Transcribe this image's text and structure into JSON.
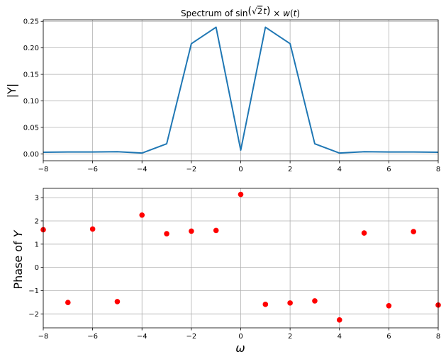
{
  "chart_data": [
    {
      "type": "line",
      "title": "Spectrum of sin(√2 t) × w(t)",
      "title_parts": {
        "pre": "Spectrum of sin",
        "lparen": "(",
        "sqrt": "√",
        "two": "2",
        "t": "t",
        "rparen": ")",
        "times": " × ",
        "w": "w",
        "wparen": "(",
        "wt": "t",
        "wclose": ")"
      },
      "xlabel": "",
      "ylabel": "|Y|",
      "xlim": [
        -8,
        8
      ],
      "ylim": [
        -0.013,
        0.253
      ],
      "grid": true,
      "x": [
        -8,
        -7,
        -6,
        -5,
        -4,
        -3,
        -2,
        -1,
        0,
        1,
        2,
        3,
        4,
        5,
        6,
        7,
        8
      ],
      "xticks": [
        "−8",
        "−6",
        "−4",
        "−2",
        "0",
        "2",
        "4",
        "6",
        "8"
      ],
      "yticks": [
        "0.00",
        "0.05",
        "0.10",
        "0.15",
        "0.20",
        "0.25"
      ],
      "series": [
        {
          "color": "#1f77b4",
          "values": [
            0.003,
            0.0035,
            0.0035,
            0.004,
            0.0015,
            0.019,
            0.208,
            0.239,
            0.007,
            0.239,
            0.208,
            0.019,
            0.0015,
            0.004,
            0.0035,
            0.0035,
            0.003
          ]
        }
      ]
    },
    {
      "type": "scatter",
      "title": "",
      "xlabel": "ω",
      "ylabel": "Phase of Y",
      "ylabel_parts": {
        "text": "Phase of ",
        "var": "Y"
      },
      "xlim": [
        -8,
        8
      ],
      "ylim": [
        -2.6,
        3.4
      ],
      "grid": true,
      "x": [
        -8,
        -7,
        -6,
        -5,
        -4,
        -3,
        -2,
        -1,
        0,
        1,
        2,
        3,
        4,
        5,
        6,
        7,
        8
      ],
      "xticks": [
        "−8",
        "−6",
        "−4",
        "−2",
        "0",
        "2",
        "4",
        "6",
        "8"
      ],
      "yticks": [
        "−2",
        "−1",
        "0",
        "1",
        "2",
        "3"
      ],
      "series": [
        {
          "color": "#ff0000",
          "values": [
            1.62,
            -1.51,
            1.65,
            -1.47,
            2.25,
            1.45,
            1.56,
            1.59,
            3.14,
            -1.59,
            -1.53,
            -1.44,
            -2.26,
            1.48,
            -1.65,
            1.54,
            -1.62
          ]
        }
      ]
    }
  ]
}
